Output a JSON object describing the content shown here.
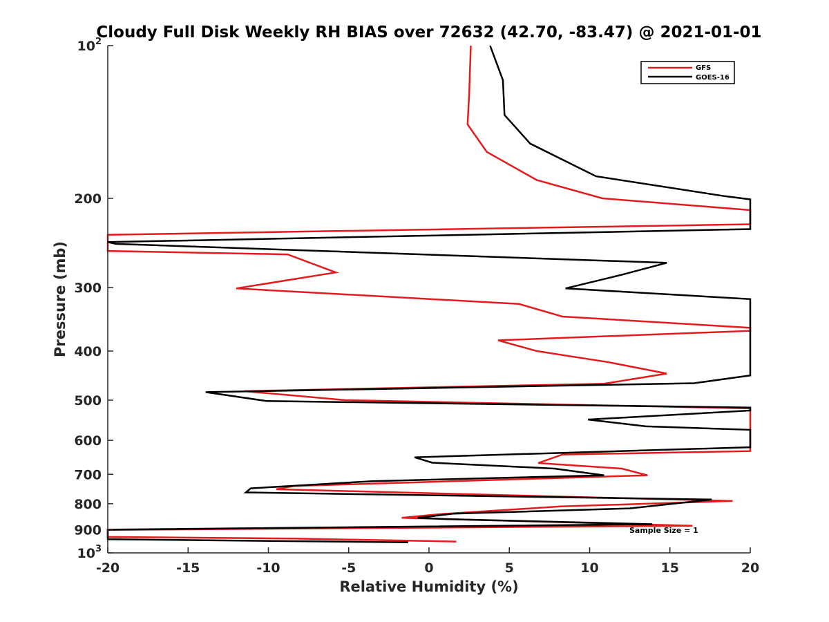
{
  "chart_data": {
    "type": "line",
    "title": "Cloudy Full Disk Weekly RH BIAS over 72632 (42.70, -83.47) @ 2021-01-01",
    "xlabel": "Relative Humidity (%)",
    "ylabel": "Pressure (mb)",
    "xlim": [
      -20,
      20
    ],
    "ylim": [
      100,
      1000
    ],
    "yscale": "log",
    "y_reversed": true,
    "grid": false,
    "legend_position": "top-right",
    "x_ticks": [
      "-20",
      "-15",
      "-10",
      "-5",
      "0",
      "5",
      "10",
      "15",
      "20"
    ],
    "y_ticks": [
      {
        "value": 100,
        "base": "10",
        "exp": "2"
      },
      {
        "value": 200,
        "label": "200"
      },
      {
        "value": 300,
        "label": "300"
      },
      {
        "value": 400,
        "label": "400"
      },
      {
        "value": 500,
        "label": "500"
      },
      {
        "value": 600,
        "label": "600"
      },
      {
        "value": 700,
        "label": "700"
      },
      {
        "value": 800,
        "label": "800"
      },
      {
        "value": 900,
        "label": "900"
      },
      {
        "value": 1000,
        "base": "10",
        "exp": "3"
      }
    ],
    "series": [
      {
        "name": "GFS",
        "color": "#e41a1c",
        "points": [
          [
            2.6,
            100
          ],
          [
            2.5,
            125
          ],
          [
            2.4,
            143
          ],
          [
            3.6,
            162
          ],
          [
            6.7,
            184
          ],
          [
            10.8,
            200
          ],
          [
            20,
            211
          ],
          [
            20,
            225
          ],
          [
            -20,
            236
          ],
          [
            -20,
            254
          ],
          [
            -8.8,
            258
          ],
          [
            -5.8,
            280
          ],
          [
            -12,
            301
          ],
          [
            5.6,
            323
          ],
          [
            8.3,
            342
          ],
          [
            20,
            360
          ],
          [
            20,
            365
          ],
          [
            4.3,
            381
          ],
          [
            6.7,
            400
          ],
          [
            11.2,
            421
          ],
          [
            14.8,
            443
          ],
          [
            10.9,
            464
          ],
          [
            -11.5,
            480
          ],
          [
            -5.2,
            500
          ],
          [
            20,
            519
          ],
          [
            20,
            630
          ],
          [
            8.3,
            640
          ],
          [
            6.8,
            665
          ],
          [
            12,
            682
          ],
          [
            13.6,
            703
          ],
          [
            -8.4,
            738
          ],
          [
            -9.5,
            749
          ],
          [
            18.9,
            790
          ],
          [
            8.2,
            810
          ],
          [
            0.8,
            838
          ],
          [
            -1.7,
            853
          ],
          [
            16.4,
            884
          ],
          [
            -20,
            901
          ],
          [
            -20,
            930
          ],
          [
            -8.4,
            937
          ],
          [
            1.7,
            950
          ]
        ]
      },
      {
        "name": "GOES-16",
        "color": "#000000",
        "points": [
          [
            3.8,
            100
          ],
          [
            4.6,
            117
          ],
          [
            4.7,
            137
          ],
          [
            6.3,
            156
          ],
          [
            10.4,
            181
          ],
          [
            18.4,
            198
          ],
          [
            20,
            201
          ],
          [
            20,
            230
          ],
          [
            -20,
            244
          ],
          [
            -19.5,
            246
          ],
          [
            14.8,
            268
          ],
          [
            12,
            283
          ],
          [
            8.5,
            301
          ],
          [
            20,
            316
          ],
          [
            20,
            447
          ],
          [
            16.5,
            463
          ],
          [
            -13.9,
            482
          ],
          [
            -10.1,
            502
          ],
          [
            20,
            517
          ],
          [
            20,
            524
          ],
          [
            9.9,
            546
          ],
          [
            13.5,
            563
          ],
          [
            20,
            572
          ],
          [
            20,
            619
          ],
          [
            -0.9,
            648
          ],
          [
            0.2,
            664
          ],
          [
            7.8,
            682
          ],
          [
            10.9,
            703
          ],
          [
            -3.5,
            722
          ],
          [
            -11.1,
            746
          ],
          [
            -11.4,
            760
          ],
          [
            17.6,
            785
          ],
          [
            12.5,
            817
          ],
          [
            1.5,
            837
          ],
          [
            -0.7,
            853
          ],
          [
            1.2,
            858
          ],
          [
            13.9,
            878
          ],
          [
            -20,
            900
          ],
          [
            -20,
            940
          ],
          [
            -1.3,
            953
          ]
        ]
      }
    ],
    "annotation": "Sample Size = 1"
  }
}
